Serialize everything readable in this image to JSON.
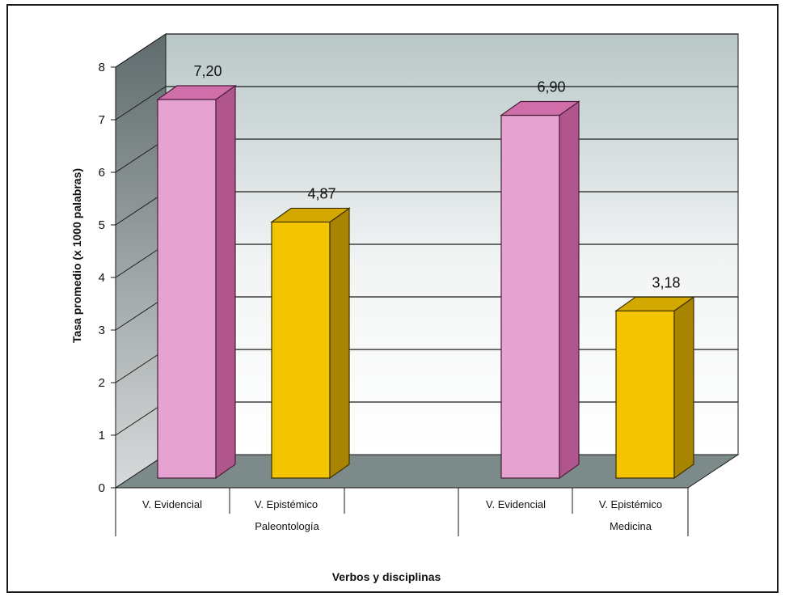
{
  "chart_data": {
    "type": "bar",
    "title": "",
    "xlabel": "Verbos y disciplinas",
    "ylabel": "Tasa promedio (x 1000 palabras)",
    "ylim": [
      0,
      8
    ],
    "yticks": [
      "0",
      "1",
      "2",
      "3",
      "4",
      "5",
      "6",
      "7",
      "8"
    ],
    "groups": [
      "Paleontología",
      "Medicina"
    ],
    "categories": [
      "V. Evidencial",
      "V. Epistémico",
      "V. Evidencial",
      "V. Epistémico"
    ],
    "values": [
      7.2,
      4.87,
      6.9,
      3.18
    ],
    "value_labels": [
      "7,20",
      "4,87",
      "6,90",
      "3,18"
    ],
    "grid": true,
    "legend": "none",
    "three_d": true,
    "colors": {
      "V. Evidencial": "#e6a3d2",
      "V. Epistémico": "#f5c400"
    }
  }
}
